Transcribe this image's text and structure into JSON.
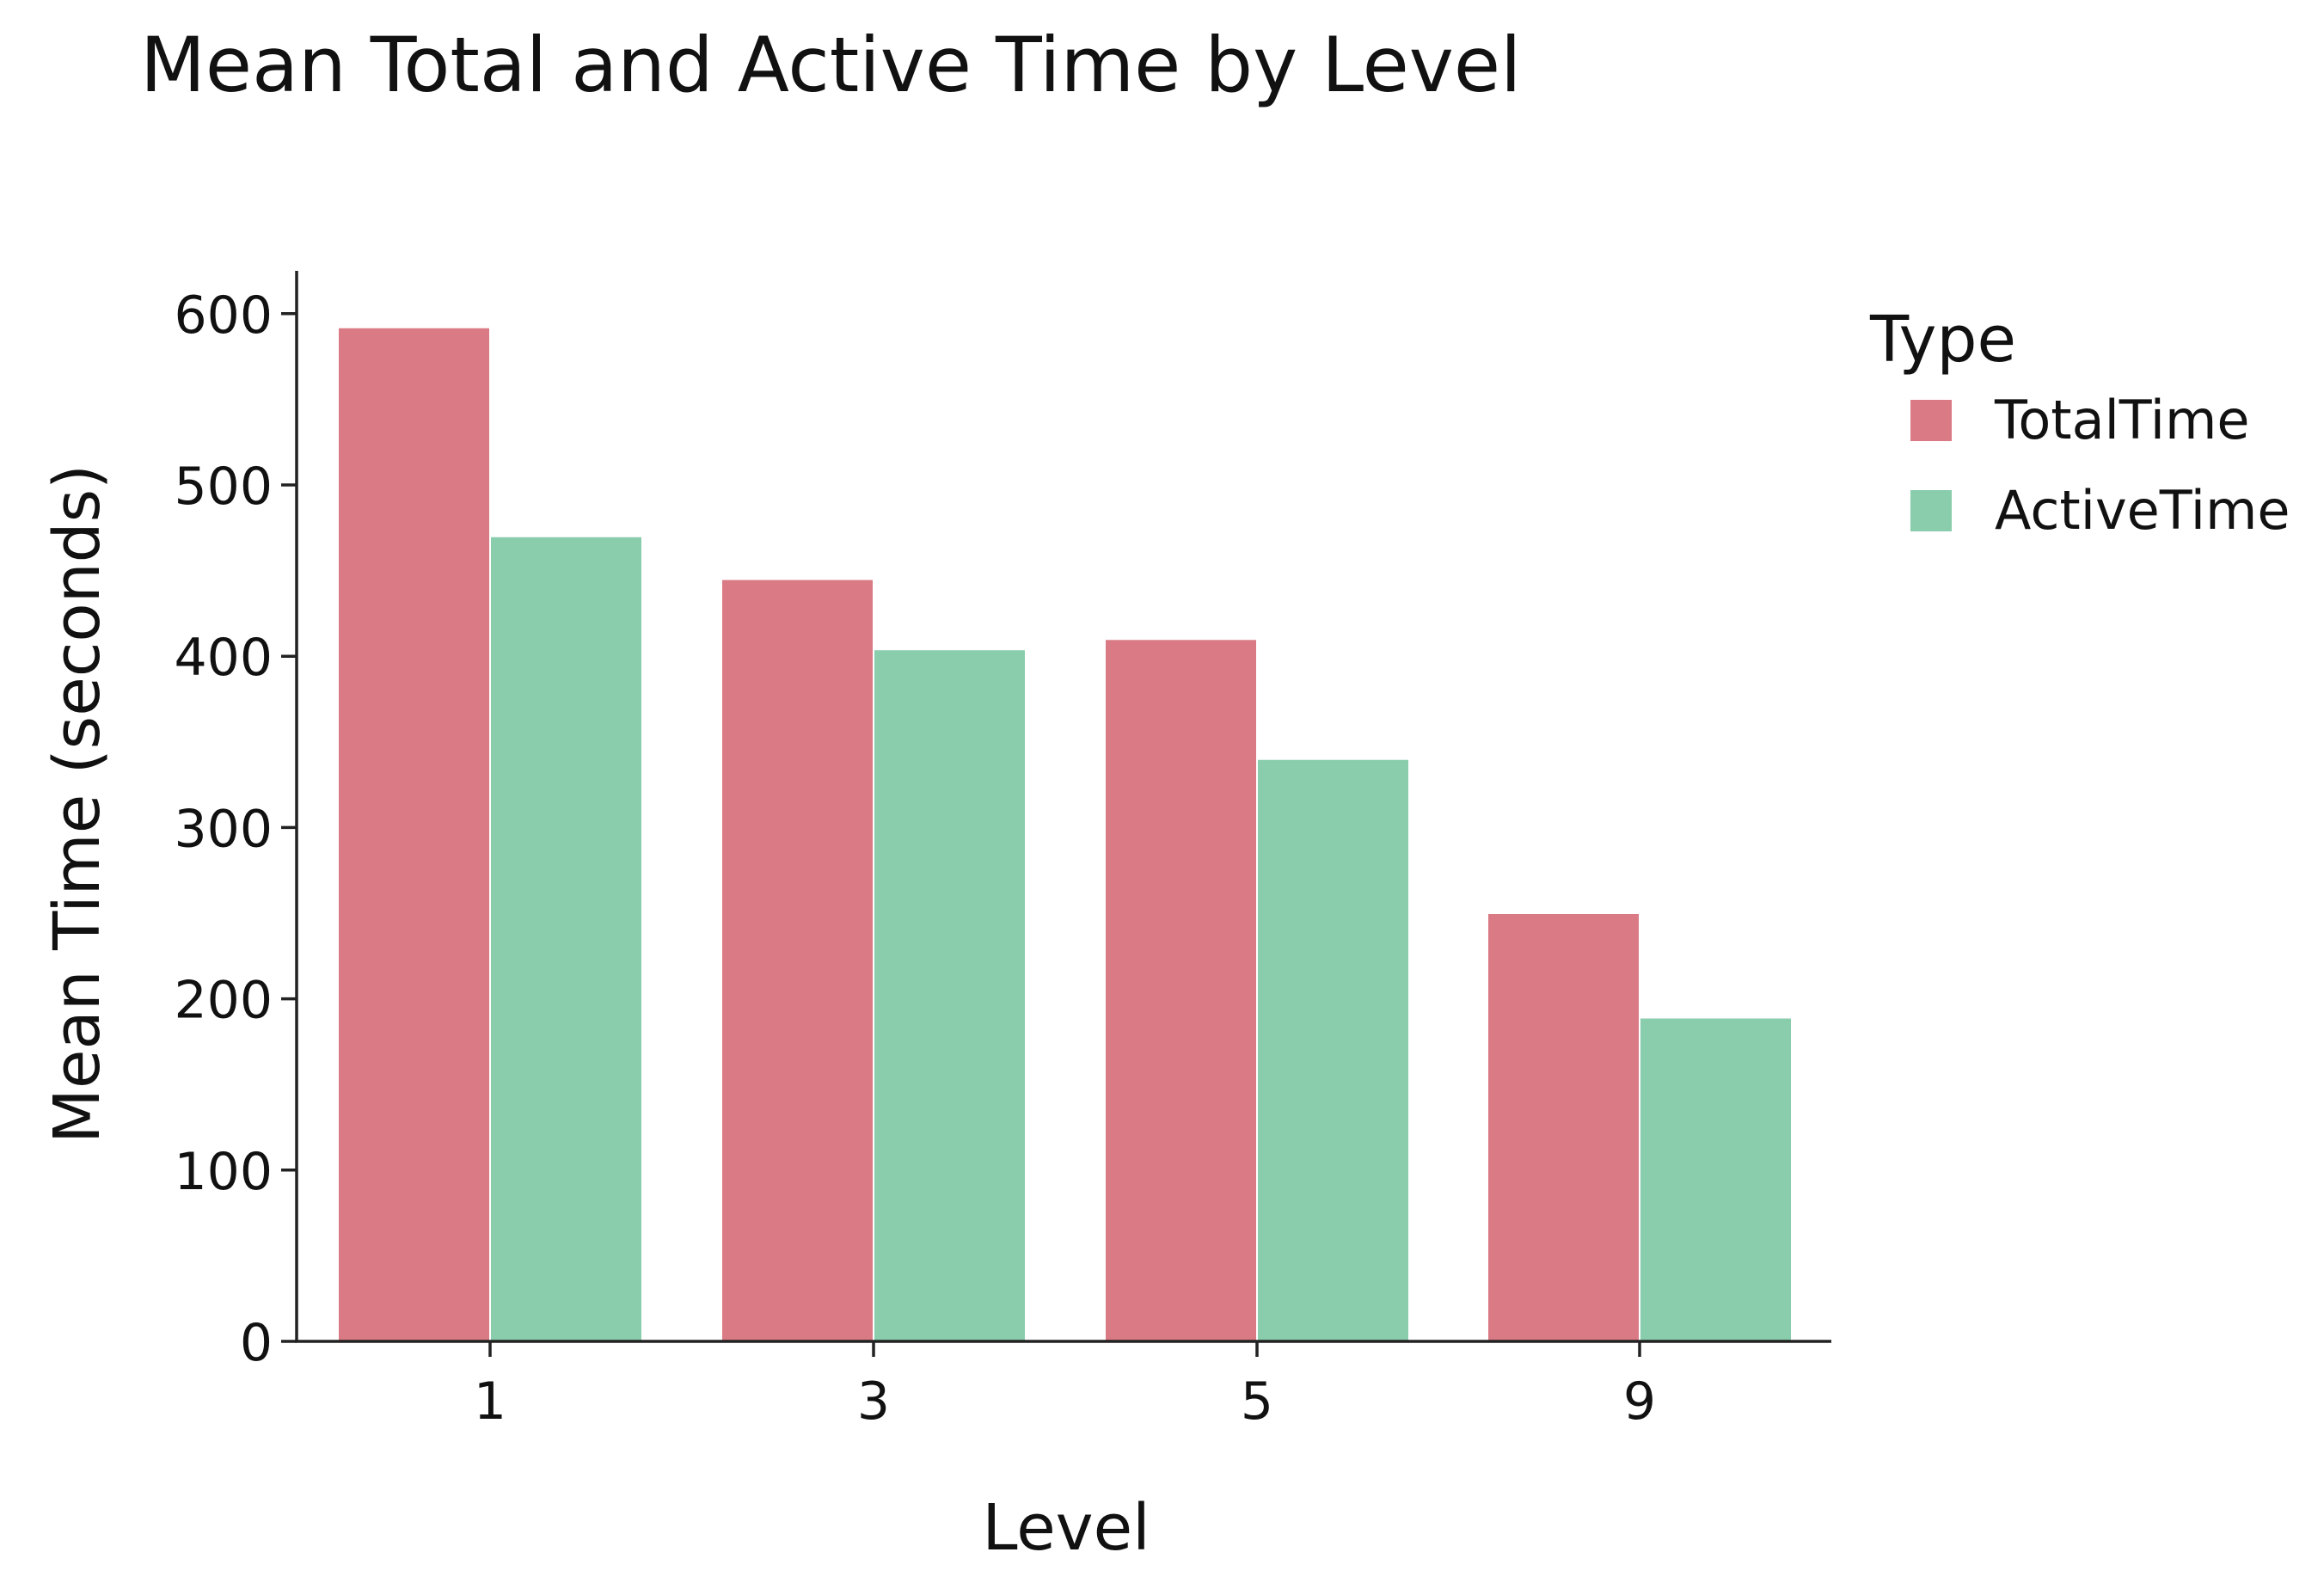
{
  "chart_data": {
    "type": "bar",
    "title": "Mean Total and Active Time by Level",
    "xlabel": "Level",
    "ylabel": "Mean Time (seconds)",
    "categories": [
      "1",
      "3",
      "5",
      "9"
    ],
    "series": [
      {
        "name": "TotalTime",
        "color": "#d97a85",
        "values": [
          592,
          445,
          410,
          250
        ]
      },
      {
        "name": "ActiveTime",
        "color": "#8acdad",
        "values": [
          470,
          404,
          340,
          189
        ]
      }
    ],
    "ylim": [
      0,
      625
    ],
    "yticks": [
      0,
      100,
      200,
      300,
      400,
      500,
      600
    ],
    "ytick_labels": [
      "0",
      "100",
      "200",
      "300",
      "400",
      "500",
      "600"
    ],
    "grid": false,
    "legend": {
      "title": "Type",
      "placement": "right-top",
      "items": [
        "TotalTime",
        "ActiveTime"
      ]
    },
    "axis_color": "#222222"
  }
}
